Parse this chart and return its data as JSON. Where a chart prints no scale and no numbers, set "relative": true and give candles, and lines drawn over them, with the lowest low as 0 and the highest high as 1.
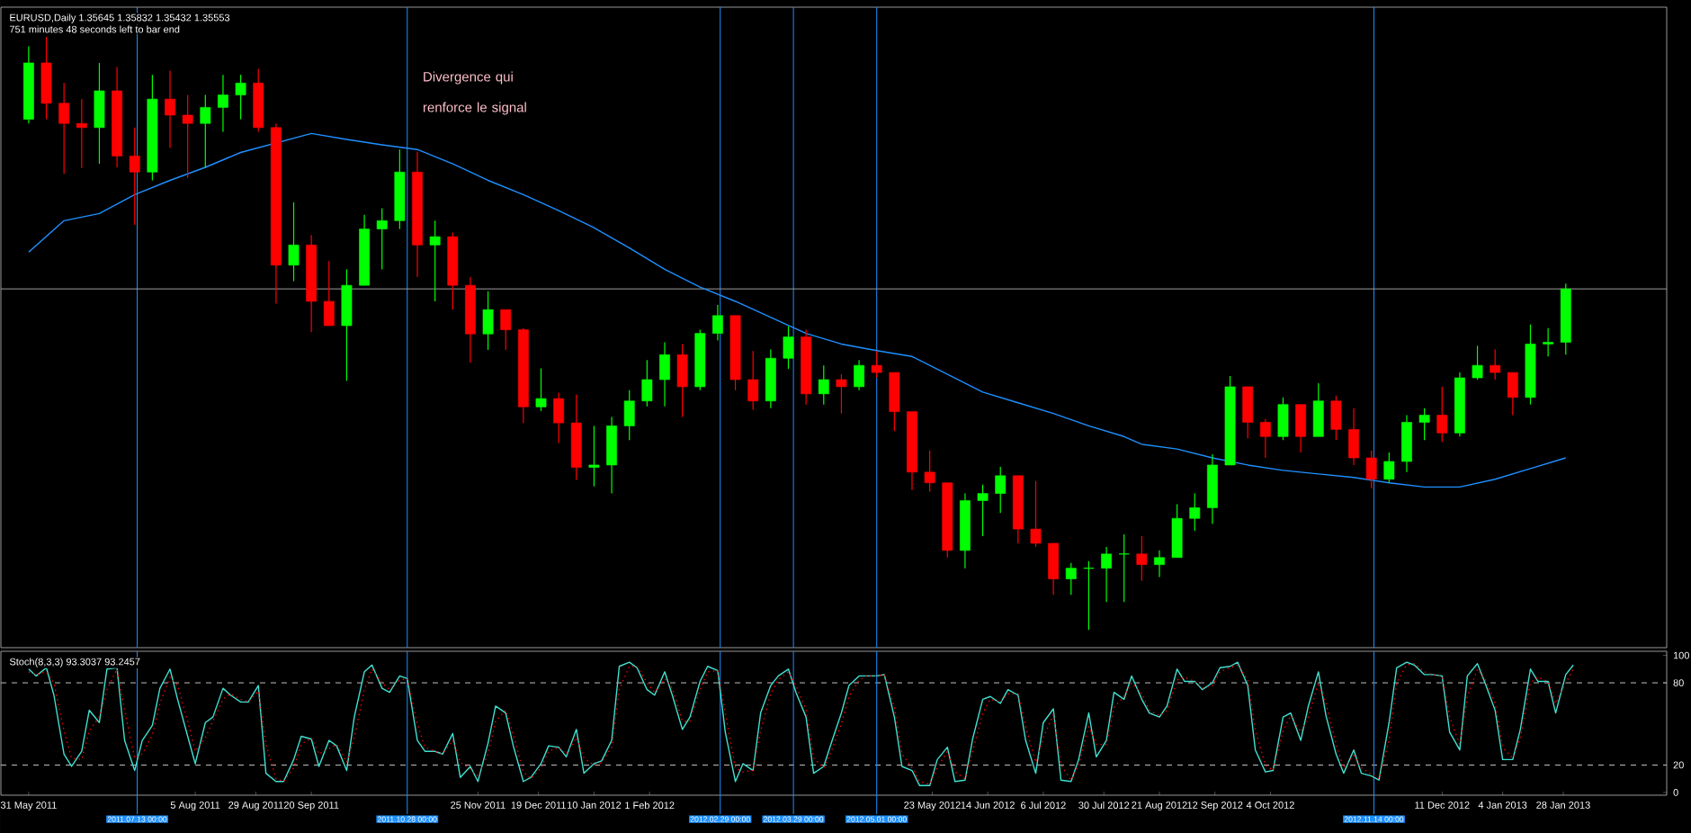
{
  "chart_data": [
    {
      "type": "candlestick",
      "title": "EURUSD,Daily 1.35645 1.35832 1.35432 1.35553",
      "subtitle": "751 minutes 48 seconds left to bar end",
      "relative": true,
      "xlim": [
        "2011-05-20",
        "2013-03-10"
      ],
      "x": [
        "2011-05-31",
        "2011-06-07",
        "2011-06-14",
        "2011-06-21",
        "2011-06-28",
        "2011-07-05",
        "2011-07-12",
        "2011-07-19",
        "2011-07-26",
        "2011-08-02",
        "2011-08-09",
        "2011-08-16",
        "2011-08-23",
        "2011-08-30",
        "2011-09-06",
        "2011-09-13",
        "2011-09-20",
        "2011-09-27",
        "2011-10-04",
        "2011-10-11",
        "2011-10-18",
        "2011-10-25",
        "2011-11-01",
        "2011-11-08",
        "2011-11-15",
        "2011-11-22",
        "2011-11-29",
        "2011-12-06",
        "2011-12-13",
        "2011-12-20",
        "2011-12-27",
        "2012-01-03",
        "2012-01-10",
        "2012-01-17",
        "2012-01-24",
        "2012-01-31",
        "2012-02-07",
        "2012-02-14",
        "2012-02-21",
        "2012-02-28",
        "2012-03-06",
        "2012-03-13",
        "2012-03-20",
        "2012-03-27",
        "2012-04-03",
        "2012-04-10",
        "2012-04-17",
        "2012-04-24",
        "2012-05-01",
        "2012-05-08",
        "2012-05-15",
        "2012-05-22",
        "2012-05-29",
        "2012-06-05",
        "2012-06-12",
        "2012-06-19",
        "2012-06-26",
        "2012-07-03",
        "2012-07-10",
        "2012-07-17",
        "2012-07-24",
        "2012-07-31",
        "2012-08-07",
        "2012-08-14",
        "2012-08-21",
        "2012-08-28",
        "2012-09-04",
        "2012-09-11",
        "2012-09-18",
        "2012-09-25",
        "2012-10-02",
        "2012-10-09",
        "2012-10-16",
        "2012-10-23",
        "2012-10-30",
        "2012-11-06",
        "2012-11-13",
        "2012-11-20",
        "2012-11-27",
        "2012-12-04",
        "2012-12-11",
        "2012-12-18",
        "2012-12-25",
        "2013-01-01",
        "2013-01-08",
        "2013-01-15",
        "2013-01-22",
        "2013-01-29"
      ],
      "ohlc": [
        [
          0.861,
          0.984,
          0.854,
          0.956
        ],
        [
          0.956,
          1.0,
          0.861,
          0.888
        ],
        [
          0.888,
          0.922,
          0.769,
          0.854
        ],
        [
          0.854,
          0.895,
          0.779,
          0.847
        ],
        [
          0.847,
          0.956,
          0.786,
          0.909
        ],
        [
          0.909,
          0.949,
          0.78,
          0.799
        ],
        [
          0.799,
          0.847,
          0.683,
          0.772
        ],
        [
          0.772,
          0.936,
          0.758,
          0.895
        ],
        [
          0.895,
          0.943,
          0.813,
          0.868
        ],
        [
          0.868,
          0.902,
          0.762,
          0.854
        ],
        [
          0.854,
          0.902,
          0.779,
          0.881
        ],
        [
          0.881,
          0.936,
          0.84,
          0.902
        ],
        [
          0.902,
          0.936,
          0.861,
          0.922
        ],
        [
          0.922,
          0.946,
          0.84,
          0.847
        ],
        [
          0.847,
          0.854,
          0.55,
          0.615
        ],
        [
          0.615,
          0.721,
          0.588,
          0.649
        ],
        [
          0.649,
          0.666,
          0.502,
          0.554
        ],
        [
          0.554,
          0.622,
          0.513,
          0.513
        ],
        [
          0.513,
          0.608,
          0.42,
          0.581
        ],
        [
          0.581,
          0.7,
          0.581,
          0.676
        ],
        [
          0.676,
          0.711,
          0.608,
          0.69
        ],
        [
          0.69,
          0.81,
          0.676,
          0.772
        ],
        [
          0.772,
          0.806,
          0.595,
          0.649
        ],
        [
          0.649,
          0.69,
          0.554,
          0.663
        ],
        [
          0.663,
          0.67,
          0.54,
          0.581
        ],
        [
          0.581,
          0.595,
          0.451,
          0.499
        ],
        [
          0.499,
          0.571,
          0.472,
          0.54
        ],
        [
          0.54,
          0.54,
          0.472,
          0.506
        ],
        [
          0.506,
          0.509,
          0.349,
          0.376
        ],
        [
          0.376,
          0.441,
          0.369,
          0.39
        ],
        [
          0.39,
          0.4,
          0.315,
          0.349
        ],
        [
          0.349,
          0.397,
          0.253,
          0.274
        ],
        [
          0.274,
          0.344,
          0.242,
          0.278
        ],
        [
          0.278,
          0.359,
          0.23,
          0.344
        ],
        [
          0.344,
          0.404,
          0.32,
          0.386
        ],
        [
          0.386,
          0.455,
          0.377,
          0.422
        ],
        [
          0.422,
          0.485,
          0.377,
          0.464
        ],
        [
          0.464,
          0.482,
          0.359,
          0.41
        ],
        [
          0.41,
          0.506,
          0.404,
          0.5
        ],
        [
          0.5,
          0.548,
          0.488,
          0.53
        ],
        [
          0.53,
          0.53,
          0.404,
          0.422
        ],
        [
          0.422,
          0.47,
          0.371,
          0.386
        ],
        [
          0.386,
          0.473,
          0.374,
          0.458
        ],
        [
          0.458,
          0.512,
          0.44,
          0.494
        ],
        [
          0.494,
          0.506,
          0.38,
          0.398
        ],
        [
          0.398,
          0.446,
          0.38,
          0.422
        ],
        [
          0.422,
          0.431,
          0.365,
          0.41
        ],
        [
          0.41,
          0.455,
          0.404,
          0.446
        ],
        [
          0.446,
          0.47,
          0.425,
          0.434
        ],
        [
          0.434,
          0.434,
          0.335,
          0.368
        ],
        [
          0.368,
          0.368,
          0.236,
          0.266
        ],
        [
          0.266,
          0.302,
          0.233,
          0.248
        ],
        [
          0.248,
          0.248,
          0.122,
          0.134
        ],
        [
          0.134,
          0.23,
          0.104,
          0.218
        ],
        [
          0.218,
          0.245,
          0.158,
          0.23
        ],
        [
          0.23,
          0.275,
          0.197,
          0.26
        ],
        [
          0.26,
          0.26,
          0.146,
          0.17
        ],
        [
          0.17,
          0.251,
          0.14,
          0.146
        ],
        [
          0.146,
          0.146,
          0.059,
          0.086
        ],
        [
          0.086,
          0.113,
          0.059,
          0.104
        ],
        [
          0.104,
          0.116,
          0.0,
          0.104
        ],
        [
          0.104,
          0.14,
          0.047,
          0.128
        ],
        [
          0.128,
          0.161,
          0.047,
          0.128
        ],
        [
          0.128,
          0.158,
          0.083,
          0.11
        ],
        [
          0.11,
          0.134,
          0.089,
          0.122
        ],
        [
          0.122,
          0.212,
          0.122,
          0.188
        ],
        [
          0.188,
          0.23,
          0.167,
          0.206
        ],
        [
          0.206,
          0.296,
          0.179,
          0.278
        ],
        [
          0.278,
          0.428,
          0.278,
          0.41
        ],
        [
          0.41,
          0.41,
          0.323,
          0.35
        ],
        [
          0.35,
          0.356,
          0.29,
          0.326
        ],
        [
          0.326,
          0.392,
          0.32,
          0.38
        ],
        [
          0.38,
          0.38,
          0.299,
          0.326
        ],
        [
          0.326,
          0.416,
          0.326,
          0.386
        ],
        [
          0.386,
          0.395,
          0.32,
          0.338
        ],
        [
          0.338,
          0.374,
          0.278,
          0.29
        ],
        [
          0.29,
          0.302,
          0.239,
          0.254
        ],
        [
          0.254,
          0.299,
          0.248,
          0.284
        ],
        [
          0.284,
          0.362,
          0.266,
          0.35
        ],
        [
          0.35,
          0.374,
          0.32,
          0.362
        ],
        [
          0.362,
          0.41,
          0.317,
          0.332
        ],
        [
          0.332,
          0.434,
          0.326,
          0.425
        ],
        [
          0.425,
          0.479,
          0.422,
          0.446
        ],
        [
          0.446,
          0.473,
          0.422,
          0.434
        ],
        [
          0.434,
          0.434,
          0.362,
          0.392
        ],
        [
          0.392,
          0.515,
          0.38,
          0.482
        ],
        [
          0.482,
          0.509,
          0.461,
          0.485
        ],
        [
          0.485,
          0.584,
          0.464,
          0.575
        ]
      ],
      "series": [
        {
          "type": "line",
          "color": "#1e90ff",
          "x": [
            "2011-05-31",
            "2011-06-14",
            "2011-06-28",
            "2011-07-12",
            "2011-07-26",
            "2011-08-09",
            "2011-08-23",
            "2011-09-06",
            "2011-09-20",
            "2011-10-04",
            "2011-10-18",
            "2011-11-01",
            "2011-11-15",
            "2011-11-29",
            "2011-12-13",
            "2011-12-27",
            "2012-01-10",
            "2012-01-24",
            "2012-02-07",
            "2012-02-21",
            "2012-03-06",
            "2012-03-20",
            "2012-04-03",
            "2012-04-17",
            "2012-05-01",
            "2012-05-15",
            "2012-05-29",
            "2012-06-12",
            "2012-06-26",
            "2012-07-10",
            "2012-07-24",
            "2012-08-07",
            "2012-08-14",
            "2012-08-28",
            "2012-09-11",
            "2012-09-25",
            "2012-10-09",
            "2012-10-23",
            "2012-11-06",
            "2012-11-20",
            "2012-12-04",
            "2012-12-18",
            "2013-01-01",
            "2013-01-15",
            "2013-01-29"
          ],
          "values": [
            0.637,
            0.69,
            0.702,
            0.734,
            0.758,
            0.78,
            0.805,
            null,
            0.837,
            0.827,
            0.818,
            0.81,
            0.786,
            0.758,
            0.734,
            0.707,
            0.678,
            0.644,
            0.608,
            0.578,
            0.554,
            0.527,
            0.5,
            0.482,
            0.471,
            0.461,
            0.431,
            0.401,
            0.383,
            0.365,
            0.344,
            0.326,
            0.313,
            0.305,
            0.29,
            0.278,
            0.269,
            0.263,
            0.257,
            0.248,
            0.241,
            0.241,
            0.254,
            0.272,
            0.29
          ]
        }
      ],
      "ref_lines": [
        {
          "axis": "x",
          "value": "2011-07-13",
          "color": "#1e90ff"
        },
        {
          "axis": "x",
          "value": "2011-10-28",
          "color": "#1e90ff"
        },
        {
          "axis": "x",
          "value": "2012-02-29",
          "color": "#1e90ff"
        },
        {
          "axis": "x",
          "value": "2012-03-29",
          "color": "#1e90ff"
        },
        {
          "axis": "x",
          "value": "2012-05-01",
          "color": "#1e90ff"
        },
        {
          "axis": "x",
          "value": "2012-11-14",
          "color": "#1e90ff"
        },
        {
          "axis": "y",
          "value": 0.575,
          "color": "#a0a0a0"
        }
      ],
      "annotations": [
        "Divergence qui renforce le signal"
      ]
    },
    {
      "type": "line",
      "title": "Stoch(8,3,3) 93.3037 93.2457",
      "xlim": [
        "2011-05-20",
        "2013-03-10"
      ],
      "ylim": [
        -2,
        103
      ],
      "yticks": [
        0,
        20,
        80,
        100
      ],
      "xticks": [
        {
          "value": "2011-05-31",
          "label": "31 May 2011"
        },
        {
          "value": "2011-08-05",
          "label": "5 Aug 2011"
        },
        {
          "value": "2011-08-29",
          "label": "29 Aug 2011"
        },
        {
          "value": "2011-09-20",
          "label": "20 Sep 2011"
        },
        {
          "value": "2011-11-25",
          "label": "25 Nov 2011"
        },
        {
          "value": "2011-12-19",
          "label": "19 Dec 2011"
        },
        {
          "value": "2012-01-10",
          "label": "10 Jan 2012"
        },
        {
          "value": "2012-02-01",
          "label": "1 Feb 2012"
        },
        {
          "value": "2012-05-23",
          "label": "23 May 2012"
        },
        {
          "value": "2012-06-14",
          "label": "14 Jun 2012"
        },
        {
          "value": "2012-07-06",
          "label": "6 Jul 2012"
        },
        {
          "value": "2012-07-30",
          "label": "30 Jul 2012"
        },
        {
          "value": "2012-08-21",
          "label": "21 Aug 2012"
        },
        {
          "value": "2012-09-12",
          "label": "12 Sep 2012"
        },
        {
          "value": "2012-10-04",
          "label": "4 Oct 2012"
        },
        {
          "value": "2012-12-11",
          "label": "11 Dec 2012"
        },
        {
          "value": "2013-01-04",
          "label": "4 Jan 2013"
        },
        {
          "value": "2013-01-28",
          "label": "28 Jan 2013"
        }
      ],
      "x": [
        "2011-05-31",
        "2011-06-03",
        "2011-06-07",
        "2011-06-10",
        "2011-06-14",
        "2011-06-17",
        "2011-06-21",
        "2011-06-24",
        "2011-06-28",
        "2011-07-01",
        "2011-07-05",
        "2011-07-08",
        "2011-07-12",
        "2011-07-15",
        "2011-07-19",
        "2011-07-22",
        "2011-07-26",
        "2011-07-29",
        "2011-08-02",
        "2011-08-05",
        "2011-08-09",
        "2011-08-12",
        "2011-08-16",
        "2011-08-19",
        "2011-08-23",
        "2011-08-26",
        "2011-08-30",
        "2011-09-02",
        "2011-09-06",
        "2011-09-09",
        "2011-09-13",
        "2011-09-16",
        "2011-09-20",
        "2011-09-23",
        "2011-09-27",
        "2011-09-30",
        "2011-10-04",
        "2011-10-07",
        "2011-10-11",
        "2011-10-14",
        "2011-10-18",
        "2011-10-21",
        "2011-10-25",
        "2011-10-28",
        "2011-11-01",
        "2011-11-04",
        "2011-11-08",
        "2011-11-11",
        "2011-11-15",
        "2011-11-18",
        "2011-11-22",
        "2011-11-25",
        "2011-11-29",
        "2011-12-02",
        "2011-12-06",
        "2011-12-09",
        "2011-12-13",
        "2011-12-16",
        "2011-12-20",
        "2011-12-23",
        "2011-12-27",
        "2011-12-30",
        "2012-01-03",
        "2012-01-06",
        "2012-01-10",
        "2012-01-13",
        "2012-01-17",
        "2012-01-20",
        "2012-01-24",
        "2012-01-27",
        "2012-01-31",
        "2012-02-03",
        "2012-02-07",
        "2012-02-10",
        "2012-02-14",
        "2012-02-17",
        "2012-02-21",
        "2012-02-24",
        "2012-02-28",
        "2012-03-02",
        "2012-03-06",
        "2012-03-09",
        "2012-03-13",
        "2012-03-16",
        "2012-03-20",
        "2012-03-23",
        "2012-03-27",
        "2012-03-30",
        "2012-04-03",
        "2012-04-06",
        "2012-04-10",
        "2012-04-13",
        "2012-04-17",
        "2012-04-20",
        "2012-04-24",
        "2012-04-27",
        "2012-05-01",
        "2012-05-04",
        "2012-05-08",
        "2012-05-11",
        "2012-05-15",
        "2012-05-18",
        "2012-05-22",
        "2012-05-25",
        "2012-05-29",
        "2012-06-01",
        "2012-06-05",
        "2012-06-08",
        "2012-06-12",
        "2012-06-15",
        "2012-06-19",
        "2012-06-22",
        "2012-06-26",
        "2012-06-29",
        "2012-07-03",
        "2012-07-06",
        "2012-07-10",
        "2012-07-13",
        "2012-07-17",
        "2012-07-20",
        "2012-07-24",
        "2012-07-27",
        "2012-07-31",
        "2012-08-03",
        "2012-08-07",
        "2012-08-10",
        "2012-08-14",
        "2012-08-17",
        "2012-08-21",
        "2012-08-24",
        "2012-08-28",
        "2012-08-31",
        "2012-09-04",
        "2012-09-07",
        "2012-09-11",
        "2012-09-14",
        "2012-09-18",
        "2012-09-21",
        "2012-09-25",
        "2012-09-28",
        "2012-10-02",
        "2012-10-05",
        "2012-10-09",
        "2012-10-12",
        "2012-10-16",
        "2012-10-19",
        "2012-10-23",
        "2012-10-26",
        "2012-10-30",
        "2012-11-02",
        "2012-11-06",
        "2012-11-09",
        "2012-11-13",
        "2012-11-16",
        "2012-11-20",
        "2012-11-23",
        "2012-11-27",
        "2012-11-30",
        "2012-12-04",
        "2012-12-07",
        "2012-12-11",
        "2012-12-14",
        "2012-12-18",
        "2012-12-21",
        "2012-12-25",
        "2012-12-28",
        "2013-01-01",
        "2013-01-04",
        "2013-01-08",
        "2013-01-11",
        "2013-01-15",
        "2013-01-18",
        "2013-01-22",
        "2013-01-25",
        "2013-01-29",
        "2013-02-01"
      ],
      "series": [
        {
          "color": "#40e0d0",
          "values": [
            90,
            85,
            91,
            71,
            28,
            19,
            30,
            60,
            51,
            90,
            91,
            38,
            16,
            38,
            49,
            76,
            90,
            68,
            41,
            21,
            51,
            55,
            76,
            71,
            66,
            66,
            78,
            14,
            8,
            8,
            24,
            41,
            39,
            19,
            38,
            34,
            16,
            55,
            88,
            93,
            76,
            73,
            85,
            83,
            38,
            30,
            30,
            28,
            43,
            11,
            19,
            8,
            36,
            63,
            58,
            34,
            8,
            11,
            21,
            34,
            33,
            26,
            46,
            14,
            21,
            23,
            38,
            92,
            95,
            91,
            75,
            71,
            88,
            71,
            46,
            55,
            81,
            92,
            89,
            44,
            8,
            21,
            16,
            58,
            78,
            85,
            90,
            73,
            55,
            14,
            19,
            36,
            58,
            78,
            85,
            85,
            85,
            86,
            55,
            19,
            16,
            5,
            5,
            24,
            33,
            8,
            9,
            39,
            68,
            70,
            65,
            75,
            71,
            38,
            14,
            51,
            61,
            9,
            8,
            24,
            58,
            26,
            38,
            73,
            68,
            85,
            68,
            58,
            55,
            63,
            90,
            81,
            81,
            75,
            80,
            91,
            92,
            95,
            78,
            31,
            15,
            16,
            55,
            58,
            38,
            63,
            88,
            56,
            28,
            14,
            31,
            14,
            12,
            9,
            51,
            91,
            95,
            93,
            86,
            86,
            85,
            44,
            31,
            85,
            94,
            80,
            60,
            24,
            24,
            46,
            90,
            81,
            81,
            58,
            86,
            93
          ]
        },
        {
          "color": "#ff0000",
          "line_style": "dotted",
          "values": [
            88,
            86,
            88,
            80,
            45,
            25,
            24,
            45,
            55,
            75,
            90,
            60,
            25,
            28,
            42,
            65,
            84,
            78,
            52,
            30,
            40,
            52,
            68,
            72,
            68,
            66,
            74,
            35,
            10,
            8,
            18,
            35,
            40,
            28,
            32,
            35,
            22,
            40,
            75,
            90,
            80,
            75,
            82,
            83,
            50,
            33,
            30,
            28,
            38,
            22,
            17,
            12,
            28,
            52,
            60,
            42,
            15,
            10,
            18,
            30,
            33,
            28,
            40,
            25,
            20,
            22,
            33,
            75,
            92,
            92,
            80,
            73,
            83,
            76,
            52,
            52,
            75,
            88,
            89,
            58,
            18,
            15,
            16,
            45,
            72,
            82,
            88,
            78,
            60,
            25,
            18,
            30,
            50,
            70,
            82,
            85,
            85,
            86,
            62,
            28,
            18,
            8,
            6,
            18,
            30,
            15,
            10,
            30,
            58,
            68,
            66,
            72,
            72,
            48,
            22,
            40,
            57,
            20,
            9,
            20,
            48,
            35,
            35,
            62,
            70,
            80,
            72,
            60,
            56,
            60,
            82,
            84,
            81,
            76,
            78,
            88,
            91,
            93,
            82,
            45,
            20,
            16,
            45,
            56,
            44,
            55,
            80,
            65,
            35,
            18,
            27,
            18,
            13,
            10,
            38,
            80,
            93,
            94,
            88,
            86,
            85,
            55,
            35,
            70,
            90,
            83,
            65,
            33,
            25,
            40,
            80,
            84,
            81,
            65,
            80,
            90
          ]
        }
      ],
      "ref_lines": [
        {
          "axis": "y",
          "value": 20,
          "color": "#c0c0c0",
          "line_style": "dashed"
        },
        {
          "axis": "y",
          "value": 80,
          "color": "#c0c0c0",
          "line_style": "dashed"
        },
        {
          "axis": "x",
          "value": "2011-07-13",
          "label": "2011.07.13 00:00",
          "color": "#1e90ff"
        },
        {
          "axis": "x",
          "value": "2011-10-28",
          "label": "2011.10.28 00:00",
          "color": "#1e90ff"
        },
        {
          "axis": "x",
          "value": "2012-02-29",
          "label": "2012.02.29 00:00",
          "color": "#1e90ff"
        },
        {
          "axis": "x",
          "value": "2012-03-29",
          "label": "2012.03.29 00:00",
          "color": "#1e90ff"
        },
        {
          "axis": "x",
          "value": "2012-05-01",
          "label": "2012.05.01 00:00",
          "color": "#1e90ff"
        },
        {
          "axis": "x",
          "value": "2012-11-14",
          "label": "2012.11.14 00:00",
          "color": "#1e90ff"
        }
      ]
    }
  ]
}
